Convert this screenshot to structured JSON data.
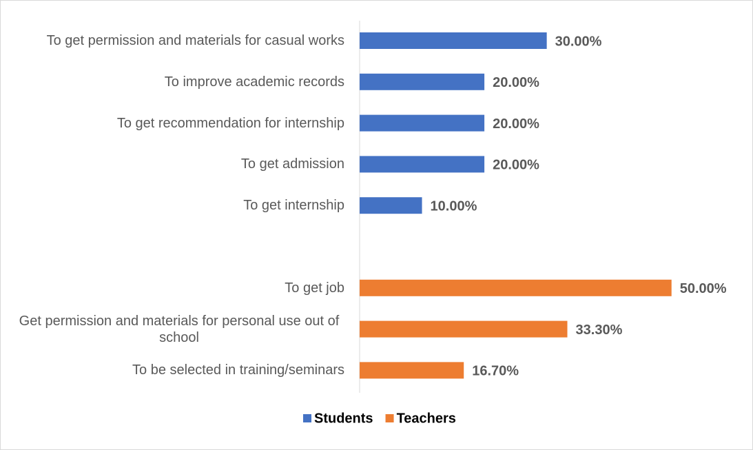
{
  "chart_data": {
    "type": "bar",
    "orientation": "horizontal",
    "categories": [
      "To get permission and materials for casual works",
      "To improve academic records",
      "To get recommendation for internship ",
      "To get admission",
      "To get internship",
      null,
      "To get job",
      "Get permission and materials for personal use out of school",
      "To be selected in training/seminars"
    ],
    "series": [
      {
        "name": "Students",
        "color": "#4472c4",
        "values": [
          30,
          20,
          20,
          20,
          10,
          null,
          null,
          null,
          null
        ],
        "value_labels": [
          "30.00%",
          "20.00%",
          "20.00%",
          "20.00%",
          "10.00%",
          null,
          null,
          null,
          null
        ]
      },
      {
        "name": "Teachers",
        "color": "#ed7d31",
        "values": [
          null,
          null,
          null,
          null,
          null,
          null,
          50,
          33.3,
          16.7
        ],
        "value_labels": [
          null,
          null,
          null,
          null,
          null,
          null,
          "50.00%",
          "33.30%",
          "16.70%"
        ]
      }
    ],
    "xlim": [
      0,
      55
    ],
    "legend": "bottom"
  }
}
